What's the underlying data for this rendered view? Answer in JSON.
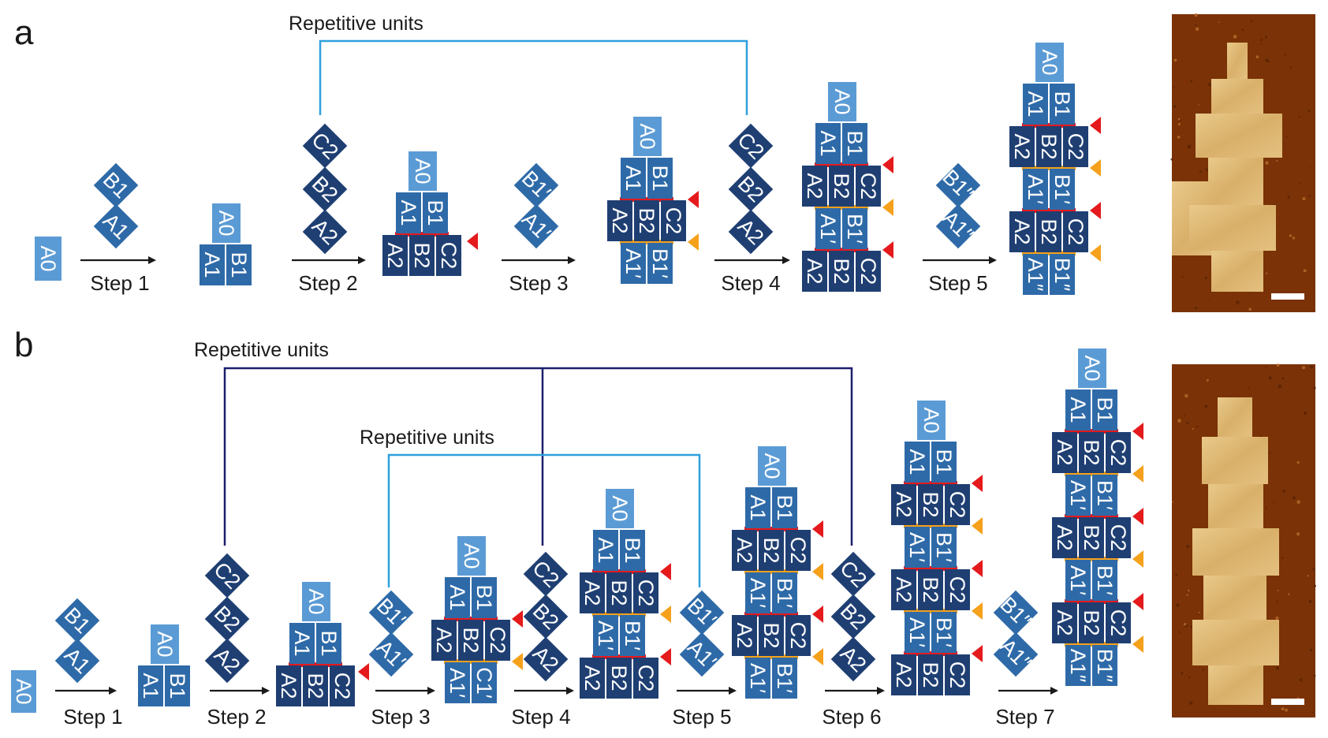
{
  "colors": {
    "light": "#5b9bd5",
    "mid": "#2e6aa8",
    "dark": "#1f3f73",
    "red_seam": "#e41a1c",
    "orange_seam": "#f5a11c",
    "bracket_light": "#2fa0dd",
    "bracket_dark": "#1c1f6b",
    "arrow": "#1a1a1a"
  },
  "panels": [
    {
      "letter": "a",
      "brackets": [
        {
          "label": "Repetitive units",
          "color": "light"
        }
      ],
      "steps": [
        "Step 1",
        "Step 2",
        "Step 3",
        "Step 4",
        "Step 5"
      ]
    },
    {
      "letter": "b",
      "brackets": [
        {
          "label": "Repetitive units",
          "color": "dark"
        },
        {
          "label": "Repetitive units",
          "color": "light"
        }
      ],
      "steps": [
        "Step 1",
        "Step 2",
        "Step 3",
        "Step 4",
        "Step 5",
        "Step 6",
        "Step 7"
      ]
    }
  ],
  "tiles": {
    "A0": "A0",
    "A1": "A1",
    "B1": "B1",
    "A2": "A2",
    "B2": "B2",
    "C2": "C2",
    "A1p": "A1′",
    "B1p": "B1′",
    "C1p": "C1′",
    "A1pp": "A1″",
    "B1pp": "B1″"
  },
  "afm_images": [
    {
      "panel": "a",
      "scale_bar": true
    },
    {
      "panel": "b",
      "scale_bar": true
    }
  ]
}
